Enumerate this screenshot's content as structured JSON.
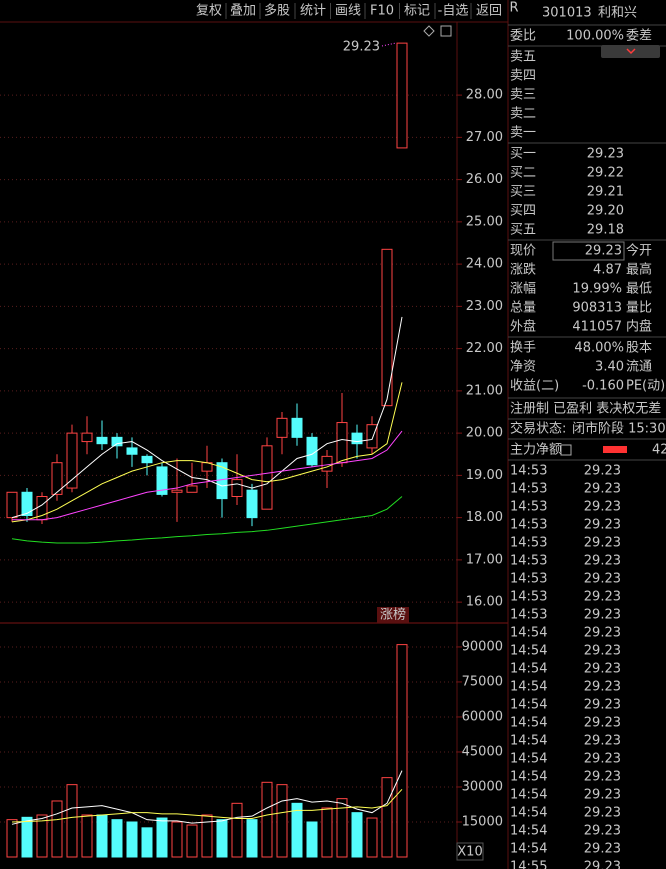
{
  "toolbar": {
    "buttons": [
      "复权",
      "叠加",
      "多股",
      "统计",
      "画线",
      "F10",
      "标记",
      "-自选",
      "返回"
    ]
  },
  "chart_data": [
    {
      "type": "candlestick",
      "open": [
        18.0,
        18.6,
        17.95,
        18.55,
        18.7,
        19.8,
        19.9,
        19.9,
        19.65,
        19.45,
        19.2,
        18.6,
        18.6,
        19.1,
        19.3,
        18.5,
        18.65,
        18.2,
        19.9,
        20.35,
        19.9,
        19.1,
        19.3,
        20.0,
        19.65,
        20.65,
        26.75
      ],
      "high": [
        18.6,
        18.7,
        18.6,
        19.5,
        20.2,
        20.4,
        20.3,
        20.0,
        19.9,
        19.5,
        19.3,
        19.4,
        19.3,
        19.7,
        19.4,
        19.5,
        18.8,
        19.9,
        20.5,
        20.7,
        20.0,
        19.6,
        20.95,
        20.2,
        20.4,
        24.35,
        29.23
      ],
      "low": [
        17.9,
        17.9,
        17.85,
        18.4,
        18.6,
        19.5,
        19.6,
        19.4,
        19.2,
        19.0,
        18.5,
        17.9,
        18.6,
        18.7,
        18.0,
        18.3,
        17.8,
        18.2,
        19.5,
        19.7,
        19.2,
        18.7,
        19.2,
        19.4,
        19.5,
        20.65,
        26.75
      ],
      "close": [
        18.6,
        18.05,
        18.5,
        19.3,
        20.0,
        20.0,
        19.75,
        19.7,
        19.5,
        19.3,
        18.55,
        18.65,
        18.75,
        19.3,
        18.45,
        18.9,
        18.0,
        19.7,
        20.35,
        19.9,
        19.25,
        19.45,
        20.25,
        19.75,
        20.2,
        24.35,
        29.23
      ],
      "up_color": "#ff4444",
      "down_color": "#54fcfc",
      "ylim": [
        15.53,
        29.73
      ],
      "yticks": [
        {
          "value": 16,
          "label": "16.00"
        },
        {
          "value": 17,
          "label": "17.00"
        },
        {
          "value": 18,
          "label": "18.00"
        },
        {
          "value": 19,
          "label": "19.00"
        },
        {
          "value": 20,
          "label": "20.00"
        },
        {
          "value": 21,
          "label": "21.00"
        },
        {
          "value": 22,
          "label": "22.00"
        },
        {
          "value": 23,
          "label": "23.00"
        },
        {
          "value": 24,
          "label": "24.00"
        },
        {
          "value": 25,
          "label": "25.00"
        },
        {
          "value": 26,
          "label": "26.00"
        },
        {
          "value": 27,
          "label": "27.00"
        },
        {
          "value": 28,
          "label": "28.00"
        }
      ],
      "grid": true,
      "lines": [
        {
          "color": "#ffffff",
          "values": [
            18.0,
            18.1,
            18.3,
            18.6,
            18.9,
            19.2,
            19.5,
            19.75,
            19.8,
            19.6,
            19.35,
            19.15,
            18.95,
            18.9,
            18.75,
            18.8,
            18.7,
            18.8,
            19.1,
            19.4,
            19.5,
            19.75,
            19.85,
            19.8,
            19.85,
            20.8,
            22.75
          ]
        },
        {
          "color": "#ffff54",
          "values": [
            17.9,
            17.95,
            18.05,
            18.2,
            18.4,
            18.6,
            18.8,
            18.95,
            19.1,
            19.2,
            19.3,
            19.35,
            19.35,
            19.3,
            19.2,
            19.05,
            18.9,
            18.85,
            18.9,
            19.0,
            19.1,
            19.2,
            19.35,
            19.45,
            19.5,
            19.75,
            21.2
          ]
        },
        {
          "color": "#ff44ff",
          "values": [
            17.95,
            17.95,
            17.95,
            18.0,
            18.1,
            18.2,
            18.3,
            18.4,
            18.5,
            18.6,
            18.65,
            18.7,
            18.8,
            18.85,
            18.9,
            18.95,
            19.0,
            19.05,
            19.1,
            19.15,
            19.2,
            19.25,
            19.3,
            19.35,
            19.4,
            19.6,
            20.05
          ]
        },
        {
          "color": "#22dd22",
          "values": [
            17.5,
            17.45,
            17.42,
            17.4,
            17.4,
            17.4,
            17.42,
            17.45,
            17.47,
            17.5,
            17.52,
            17.55,
            17.57,
            17.6,
            17.62,
            17.65,
            17.67,
            17.7,
            17.75,
            17.8,
            17.85,
            17.9,
            17.95,
            18.0,
            18.05,
            18.2,
            18.5
          ]
        }
      ],
      "annotations": [
        "29.23",
        "涨榜"
      ]
    },
    {
      "type": "bar",
      "values": [
        16000,
        17000,
        18000,
        24000,
        31000,
        18000,
        18000,
        16000,
        15000,
        12500,
        16700,
        15000,
        13700,
        18000,
        16000,
        23000,
        16000,
        32000,
        31000,
        23000,
        15000,
        21000,
        25000,
        19000,
        16700,
        34000,
        91000
      ],
      "ylim": [
        0,
        99400
      ],
      "yticks": [
        15000,
        30000,
        45000,
        60000,
        75000,
        90000
      ],
      "grid": true,
      "lines": [
        {
          "color": "#ffffff",
          "values": [
            14000,
            15500,
            16500,
            18500,
            21000,
            21500,
            22000,
            20500,
            19000,
            16000,
            15500,
            15500,
            14500,
            15000,
            15500,
            17000,
            17500,
            21000,
            24000,
            25000,
            23500,
            24000,
            23000,
            20500,
            19000,
            23000,
            37000
          ]
        },
        {
          "color": "#ffff54",
          "values": [
            15000,
            15200,
            15500,
            16000,
            17000,
            17500,
            18000,
            18500,
            19000,
            19000,
            18500,
            18500,
            18000,
            17500,
            17000,
            16500,
            16500,
            18000,
            19000,
            20000,
            20000,
            20500,
            21000,
            21500,
            21000,
            22000,
            29000
          ]
        }
      ],
      "annotations": [
        "X10"
      ]
    }
  ],
  "quote": {
    "badge": "R",
    "code": "301013",
    "name": "利和兴",
    "weibi": {
      "label": "委比",
      "value": "100.00%",
      "label2": "委差"
    },
    "asks": [
      "卖五",
      "卖四",
      "卖三",
      "卖二",
      "卖一"
    ],
    "bids": [
      {
        "label": "买一",
        "price": "29.23"
      },
      {
        "label": "买二",
        "price": "29.22"
      },
      {
        "label": "买三",
        "price": "29.21"
      },
      {
        "label": "买四",
        "price": "29.20"
      },
      {
        "label": "买五",
        "price": "29.18"
      }
    ],
    "stats": [
      {
        "label": "现价",
        "value": "29.23",
        "label2": "今开"
      },
      {
        "label": "涨跌",
        "value": "4.87",
        "label2": "最高"
      },
      {
        "label": "涨幅",
        "value": "19.99%",
        "label2": "最低"
      },
      {
        "label": "总量",
        "value": "908313",
        "label2": "量比"
      },
      {
        "label": "外盘",
        "value": "411057",
        "label2": "内盘"
      }
    ],
    "stats2": [
      {
        "label": "换手",
        "value": "48.00%",
        "label2": "股本"
      },
      {
        "label": "净资",
        "value": "3.40",
        "label2": "流通"
      },
      {
        "label": "收益(二)",
        "value": "-0.160",
        "label2": "PE(动)"
      }
    ],
    "tags": "注册制 已盈利 表决权无差",
    "status": {
      "label": "交易状态:",
      "value": "闭市阶段 15:30"
    },
    "flow": {
      "label": "主力净额",
      "value": "42"
    }
  },
  "ticks": [
    {
      "time": "14:53",
      "price": "29.23"
    },
    {
      "time": "14:53",
      "price": "29.23"
    },
    {
      "time": "14:53",
      "price": "29.23"
    },
    {
      "time": "14:53",
      "price": "29.23"
    },
    {
      "time": "14:53",
      "price": "29.23"
    },
    {
      "time": "14:53",
      "price": "29.23"
    },
    {
      "time": "14:53",
      "price": "29.23"
    },
    {
      "time": "14:53",
      "price": "29.23"
    },
    {
      "time": "14:53",
      "price": "29.23"
    },
    {
      "time": "14:54",
      "price": "29.23"
    },
    {
      "time": "14:54",
      "price": "29.23"
    },
    {
      "time": "14:54",
      "price": "29.23"
    },
    {
      "time": "14:54",
      "price": "29.23"
    },
    {
      "time": "14:54",
      "price": "29.23"
    },
    {
      "time": "14:54",
      "price": "29.23"
    },
    {
      "time": "14:54",
      "price": "29.23"
    },
    {
      "time": "14:54",
      "price": "29.23"
    },
    {
      "time": "14:54",
      "price": "29.23"
    },
    {
      "time": "14:54",
      "price": "29.23"
    },
    {
      "time": "14:54",
      "price": "29.23"
    },
    {
      "time": "14:54",
      "price": "29.23"
    },
    {
      "time": "14:54",
      "price": "29.23"
    },
    {
      "time": "14:55",
      "price": "29.23"
    }
  ]
}
